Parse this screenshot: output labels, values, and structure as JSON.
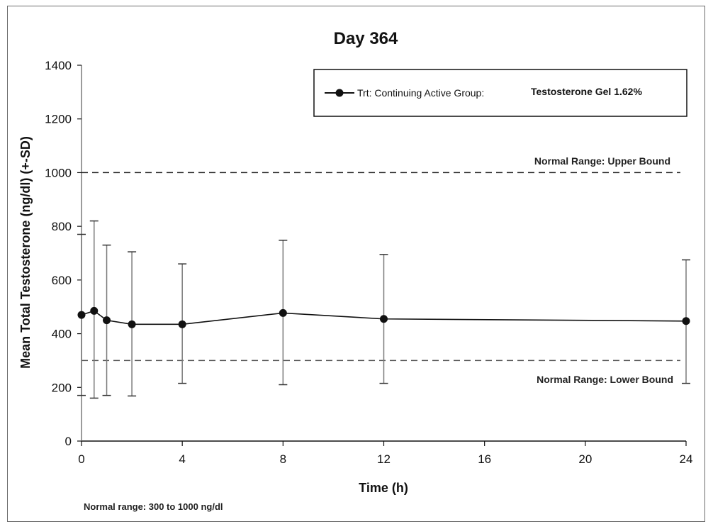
{
  "chart_data": {
    "type": "line",
    "title": "Day 364",
    "xlabel": "Time (h)",
    "ylabel": "Mean Total Testosterone (ng/dl) (+-SD)",
    "xlim": [
      0,
      24
    ],
    "ylim": [
      0,
      1400
    ],
    "xticks": [
      0,
      4,
      8,
      12,
      16,
      20,
      24
    ],
    "yticks": [
      0,
      200,
      400,
      600,
      800,
      1000,
      1200,
      1400
    ],
    "grid": false,
    "legend_position": "top-right",
    "series": [
      {
        "name": "Trt: Continuing Active Group:",
        "name_suffix": "Testosterone Gel 1.62%",
        "x": [
          0,
          0.5,
          1,
          2,
          4,
          8,
          12,
          24
        ],
        "y": [
          470,
          485,
          450,
          435,
          435,
          477,
          455,
          447
        ],
        "sd_upper": [
          770,
          820,
          730,
          705,
          660,
          748,
          695,
          675
        ],
        "sd_lower": [
          170,
          160,
          170,
          168,
          215,
          210,
          215,
          215
        ]
      }
    ],
    "reference_lines": [
      {
        "label": "Normal Range: Upper Bound",
        "y": 1000
      },
      {
        "label": "Normal Range: Lower Bound",
        "y": 300
      }
    ],
    "footnote": "Normal range: 300 to 1000 ng/dl",
    "colors": {
      "line": "#111111",
      "errorbar": "#7a7a7a",
      "reference": "#222222"
    }
  }
}
